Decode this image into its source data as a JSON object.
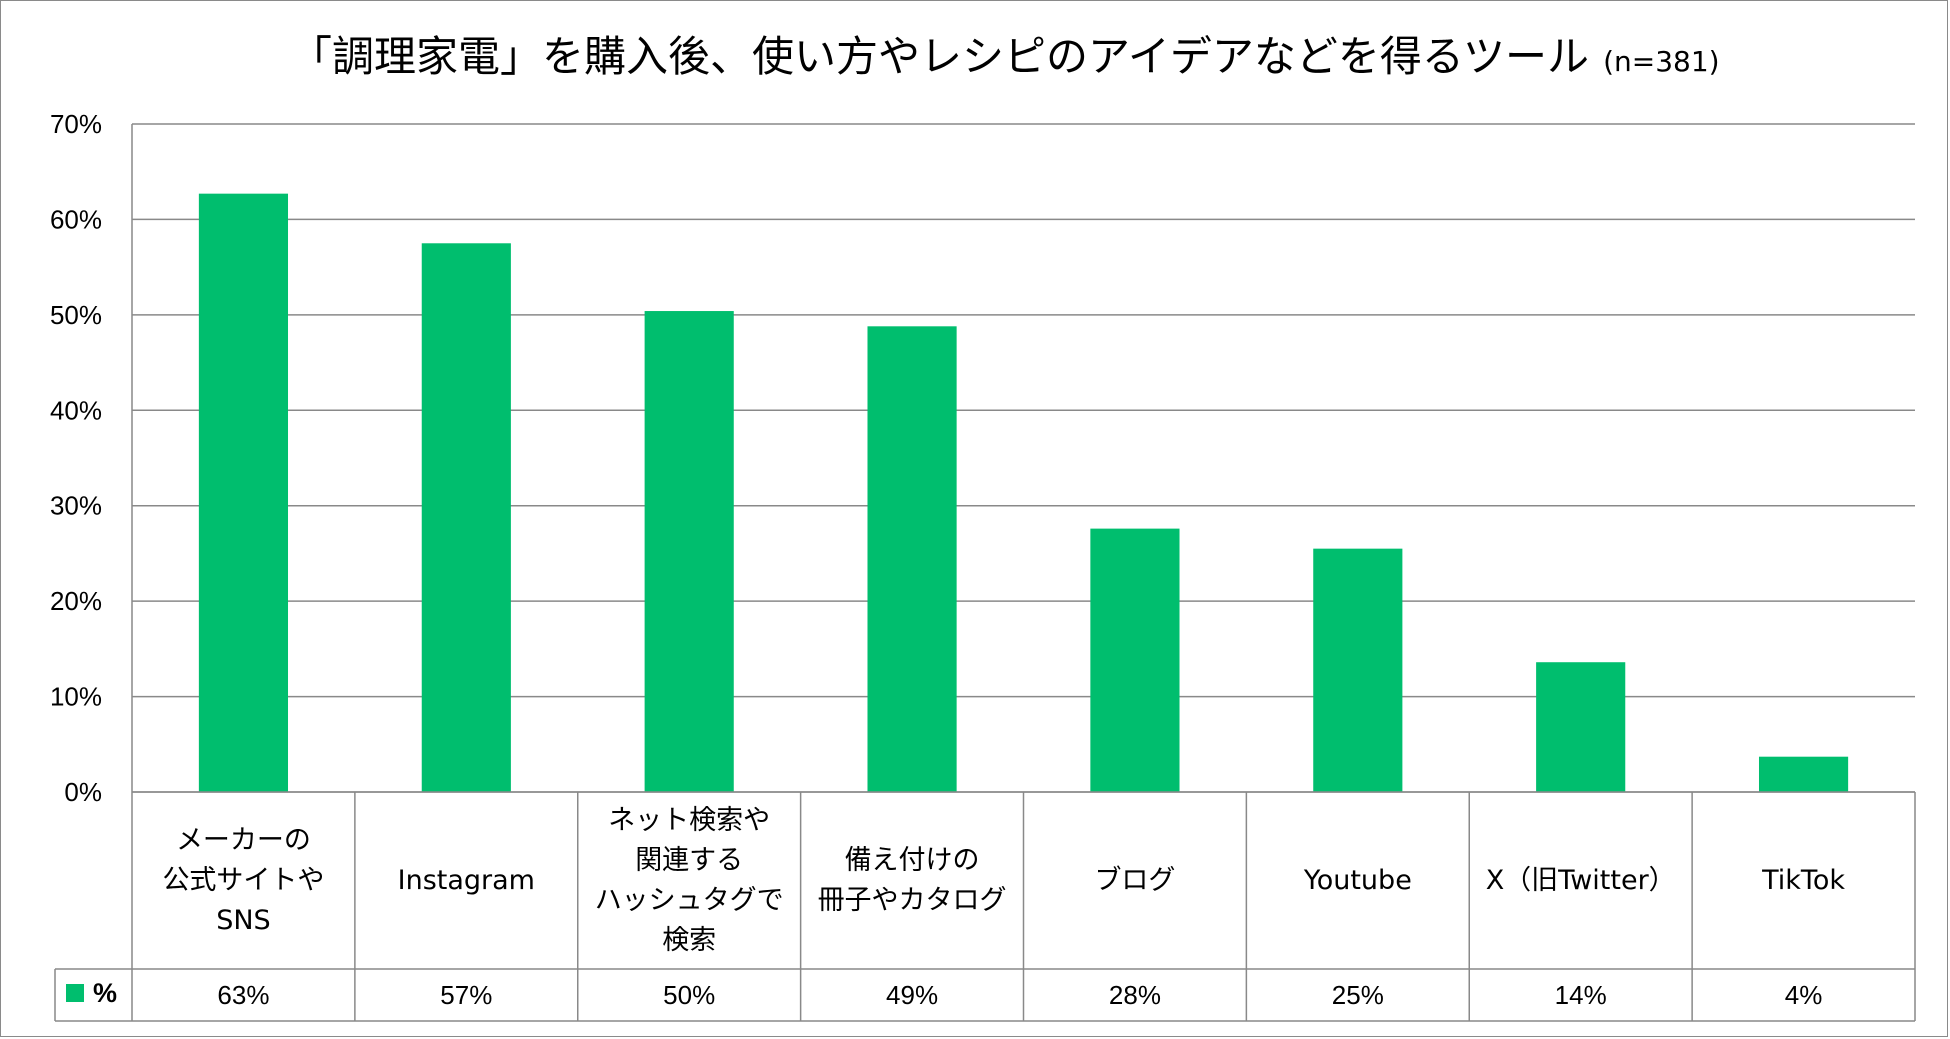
{
  "chart_data": {
    "type": "bar",
    "title": "「調理家電」を購入後、使い方やレシピのアイデアなどを得るツール",
    "subtitle": "(n=381)",
    "categories": [
      [
        "メーカーの",
        "公式サイトや",
        "SNS"
      ],
      [
        "Instagram"
      ],
      [
        "ネット検索や",
        "関連する",
        "ハッシュタグで",
        "検索"
      ],
      [
        "備え付けの",
        "冊子やカタログ"
      ],
      [
        "ブログ"
      ],
      [
        "Youtube"
      ],
      [
        "X（旧Twitter）"
      ],
      [
        "TikTok"
      ]
    ],
    "series": [
      {
        "name": "%",
        "values": [
          62.7,
          57.5,
          50.4,
          48.8,
          27.6,
          25.5,
          13.6,
          3.7
        ],
        "labels": [
          "63%",
          "57%",
          "50%",
          "49%",
          "28%",
          "25%",
          "14%",
          "4%"
        ],
        "color": "#00be6e"
      }
    ],
    "yticks": [
      "0%",
      "10%",
      "20%",
      "30%",
      "40%",
      "50%",
      "60%",
      "70%"
    ],
    "ylim": [
      0,
      70
    ],
    "grid": true,
    "legend": "data-table-left",
    "data_table": true
  },
  "colors": {
    "bar": "#00be6e",
    "grid": "#898989",
    "border": "#8a8a8a"
  }
}
